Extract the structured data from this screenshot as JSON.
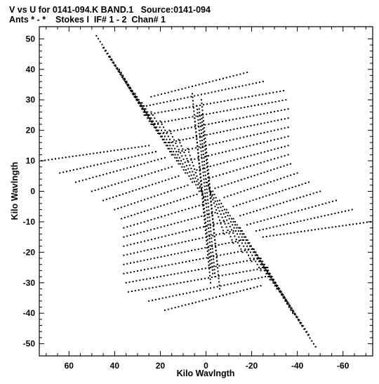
{
  "header": {
    "line1": "V vs U for 0141-094.K BAND.1   Source:0141-094",
    "line2": "Ants * - *    Stokes I  IF# 1 - 2  Chan# 1"
  },
  "chart_data": {
    "type": "scatter",
    "xlabel": "Kilo Wavlngth",
    "ylabel": "Kilo Wavlngth",
    "xlim": [
      73,
      -73
    ],
    "ylim": [
      -54,
      54
    ],
    "x_ticks": [
      60,
      40,
      20,
      0,
      -20,
      -40,
      -60
    ],
    "x_tick_labels": [
      "60",
      "40",
      "20",
      "0",
      "-20",
      "-40",
      "-60"
    ],
    "y_ticks": [
      50,
      40,
      30,
      20,
      10,
      0,
      -10,
      -20,
      -30,
      -40,
      -50
    ],
    "y_tick_labels": [
      "50",
      "40",
      "30",
      "20",
      "10",
      "0",
      "-10",
      "-20",
      "-30",
      "-40",
      "-50"
    ],
    "grid": false,
    "marker_color": "#000000",
    "tracks": [
      {
        "from": [
          48,
          51
        ],
        "to": [
          28,
          28
        ]
      },
      {
        "from": [
          45,
          47
        ],
        "to": [
          26,
          25
        ]
      },
      {
        "from": [
          42,
          44
        ],
        "to": [
          24,
          22
        ]
      },
      {
        "from": [
          38,
          40
        ],
        "to": [
          21,
          19
        ]
      },
      {
        "from": [
          35,
          36
        ],
        "to": [
          18,
          16
        ]
      },
      {
        "from": [
          31,
          32
        ],
        "to": [
          15,
          12
        ]
      },
      {
        "from": [
          28,
          29
        ],
        "to": [
          12,
          9
        ]
      },
      {
        "from": [
          24,
          26
        ],
        "to": [
          9,
          6
        ]
      },
      {
        "from": [
          20,
          23
        ],
        "to": [
          6,
          3
        ]
      },
      {
        "from": [
          16,
          20
        ],
        "to": [
          3,
          0
        ]
      },
      {
        "from": [
          12,
          17
        ],
        "to": [
          1,
          -2
        ]
      },
      {
        "from": [
          8,
          14
        ],
        "to": [
          0,
          -4
        ]
      },
      {
        "from": [
          72,
          10
        ],
        "to": [
          25,
          15
        ]
      },
      {
        "from": [
          64,
          6
        ],
        "to": [
          22,
          13
        ]
      },
      {
        "from": [
          57,
          3
        ],
        "to": [
          18,
          11
        ]
      },
      {
        "from": [
          50,
          0
        ],
        "to": [
          15,
          8
        ]
      },
      {
        "from": [
          45,
          -3
        ],
        "to": [
          12,
          5
        ]
      },
      {
        "from": [
          40,
          -6
        ],
        "to": [
          8,
          2
        ]
      },
      {
        "from": [
          37,
          -9
        ],
        "to": [
          4,
          -1
        ]
      },
      {
        "from": [
          36,
          -12
        ],
        "to": [
          0,
          -4
        ]
      },
      {
        "from": [
          36,
          -15
        ],
        "to": [
          -4,
          -7
        ]
      },
      {
        "from": [
          36,
          -18
        ],
        "to": [
          -8,
          -10
        ]
      },
      {
        "from": [
          36,
          -21
        ],
        "to": [
          -12,
          -13
        ]
      },
      {
        "from": [
          36,
          -24
        ],
        "to": [
          -16,
          -16
        ]
      },
      {
        "from": [
          36,
          -27
        ],
        "to": [
          -20,
          -19
        ]
      },
      {
        "from": [
          35,
          -30
        ],
        "to": [
          -24,
          -22
        ]
      },
      {
        "from": [
          34,
          -33
        ],
        "to": [
          -27,
          -25
        ]
      },
      {
        "from": [
          25,
          -36
        ],
        "to": [
          -26,
          -28
        ]
      },
      {
        "from": [
          18,
          -39
        ],
        "to": [
          -24,
          -31
        ]
      },
      {
        "from": [
          -48,
          -51
        ],
        "to": [
          -28,
          -28
        ]
      },
      {
        "from": [
          -45,
          -47
        ],
        "to": [
          -26,
          -25
        ]
      },
      {
        "from": [
          -42,
          -44
        ],
        "to": [
          -24,
          -22
        ]
      },
      {
        "from": [
          -38,
          -40
        ],
        "to": [
          -21,
          -19
        ]
      },
      {
        "from": [
          -35,
          -36
        ],
        "to": [
          -18,
          -16
        ]
      },
      {
        "from": [
          -31,
          -32
        ],
        "to": [
          -15,
          -12
        ]
      },
      {
        "from": [
          -28,
          -29
        ],
        "to": [
          -12,
          -9
        ]
      },
      {
        "from": [
          -24,
          -26
        ],
        "to": [
          -9,
          -6
        ]
      },
      {
        "from": [
          -20,
          -23
        ],
        "to": [
          -6,
          -3
        ]
      },
      {
        "from": [
          -16,
          -20
        ],
        "to": [
          -3,
          0
        ]
      },
      {
        "from": [
          -12,
          -17
        ],
        "to": [
          -1,
          2
        ]
      },
      {
        "from": [
          -8,
          -14
        ],
        "to": [
          0,
          4
        ]
      },
      {
        "from": [
          -72,
          -10
        ],
        "to": [
          -25,
          -15
        ]
      },
      {
        "from": [
          -64,
          -6
        ],
        "to": [
          -22,
          -13
        ]
      },
      {
        "from": [
          -57,
          -3
        ],
        "to": [
          -18,
          -11
        ]
      },
      {
        "from": [
          -50,
          0
        ],
        "to": [
          -15,
          -8
        ]
      },
      {
        "from": [
          -45,
          3
        ],
        "to": [
          -12,
          -5
        ]
      },
      {
        "from": [
          -40,
          6
        ],
        "to": [
          -8,
          -2
        ]
      },
      {
        "from": [
          -37,
          9
        ],
        "to": [
          -4,
          1
        ]
      },
      {
        "from": [
          -36,
          12
        ],
        "to": [
          0,
          4
        ]
      },
      {
        "from": [
          -36,
          15
        ],
        "to": [
          4,
          7
        ]
      },
      {
        "from": [
          -36,
          18
        ],
        "to": [
          8,
          10
        ]
      },
      {
        "from": [
          -36,
          21
        ],
        "to": [
          12,
          13
        ]
      },
      {
        "from": [
          -36,
          24
        ],
        "to": [
          16,
          16
        ]
      },
      {
        "from": [
          -36,
          27
        ],
        "to": [
          20,
          19
        ]
      },
      {
        "from": [
          -35,
          30
        ],
        "to": [
          24,
          22
        ]
      },
      {
        "from": [
          -34,
          33
        ],
        "to": [
          27,
          25
        ]
      },
      {
        "from": [
          -25,
          36
        ],
        "to": [
          26,
          28
        ]
      },
      {
        "from": [
          -18,
          39
        ],
        "to": [
          24,
          31
        ]
      },
      {
        "from": [
          6,
          32
        ],
        "to": [
          -2,
          -30
        ]
      },
      {
        "from": [
          4,
          28
        ],
        "to": [
          -3,
          -27
        ]
      },
      {
        "from": [
          2,
          25
        ],
        "to": [
          -5,
          -24
        ]
      },
      {
        "from": [
          -6,
          -32
        ],
        "to": [
          2,
          30
        ]
      },
      {
        "from": [
          -4,
          -28
        ],
        "to": [
          3,
          27
        ]
      },
      {
        "from": [
          -2,
          -25
        ],
        "to": [
          5,
          24
        ]
      }
    ]
  }
}
